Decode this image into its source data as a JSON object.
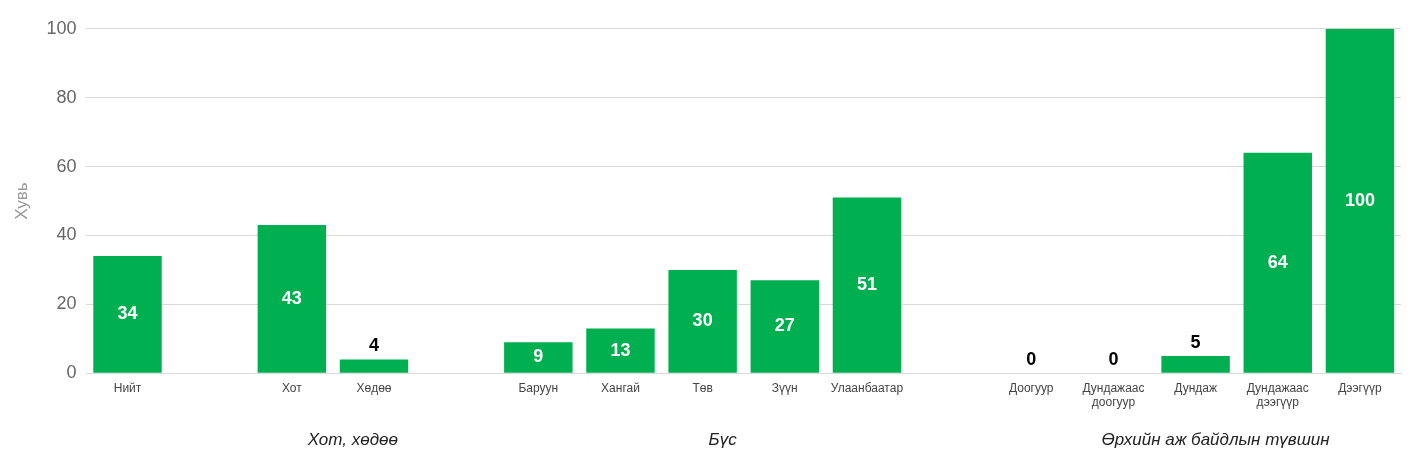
{
  "chart_data": {
    "type": "bar",
    "ylabel": "Хувь",
    "categories": [
      "Нийт",
      null,
      "Хот",
      "Хөдөө",
      null,
      "Баруун",
      "Хангай",
      "Төв",
      "Зүүн",
      "Улаанбаатар",
      null,
      "Доогуур",
      "Дундажаас доогуур",
      "Дундаж",
      "Дундажаас дээгүүр",
      "Дээгүүр"
    ],
    "values": [
      34,
      null,
      43,
      4,
      null,
      9,
      13,
      30,
      27,
      51,
      null,
      0,
      0,
      5,
      64,
      100
    ],
    "color": "#00b050",
    "ylim": [
      0,
      100
    ],
    "yticks": [
      0,
      20,
      40,
      60,
      80,
      100
    ],
    "grid": "y",
    "legend": false,
    "data_labels": true,
    "annotations": [
      "Хот, хөдөө",
      "Бүс",
      "Өрхийн аж байдлын түвшин"
    ]
  }
}
